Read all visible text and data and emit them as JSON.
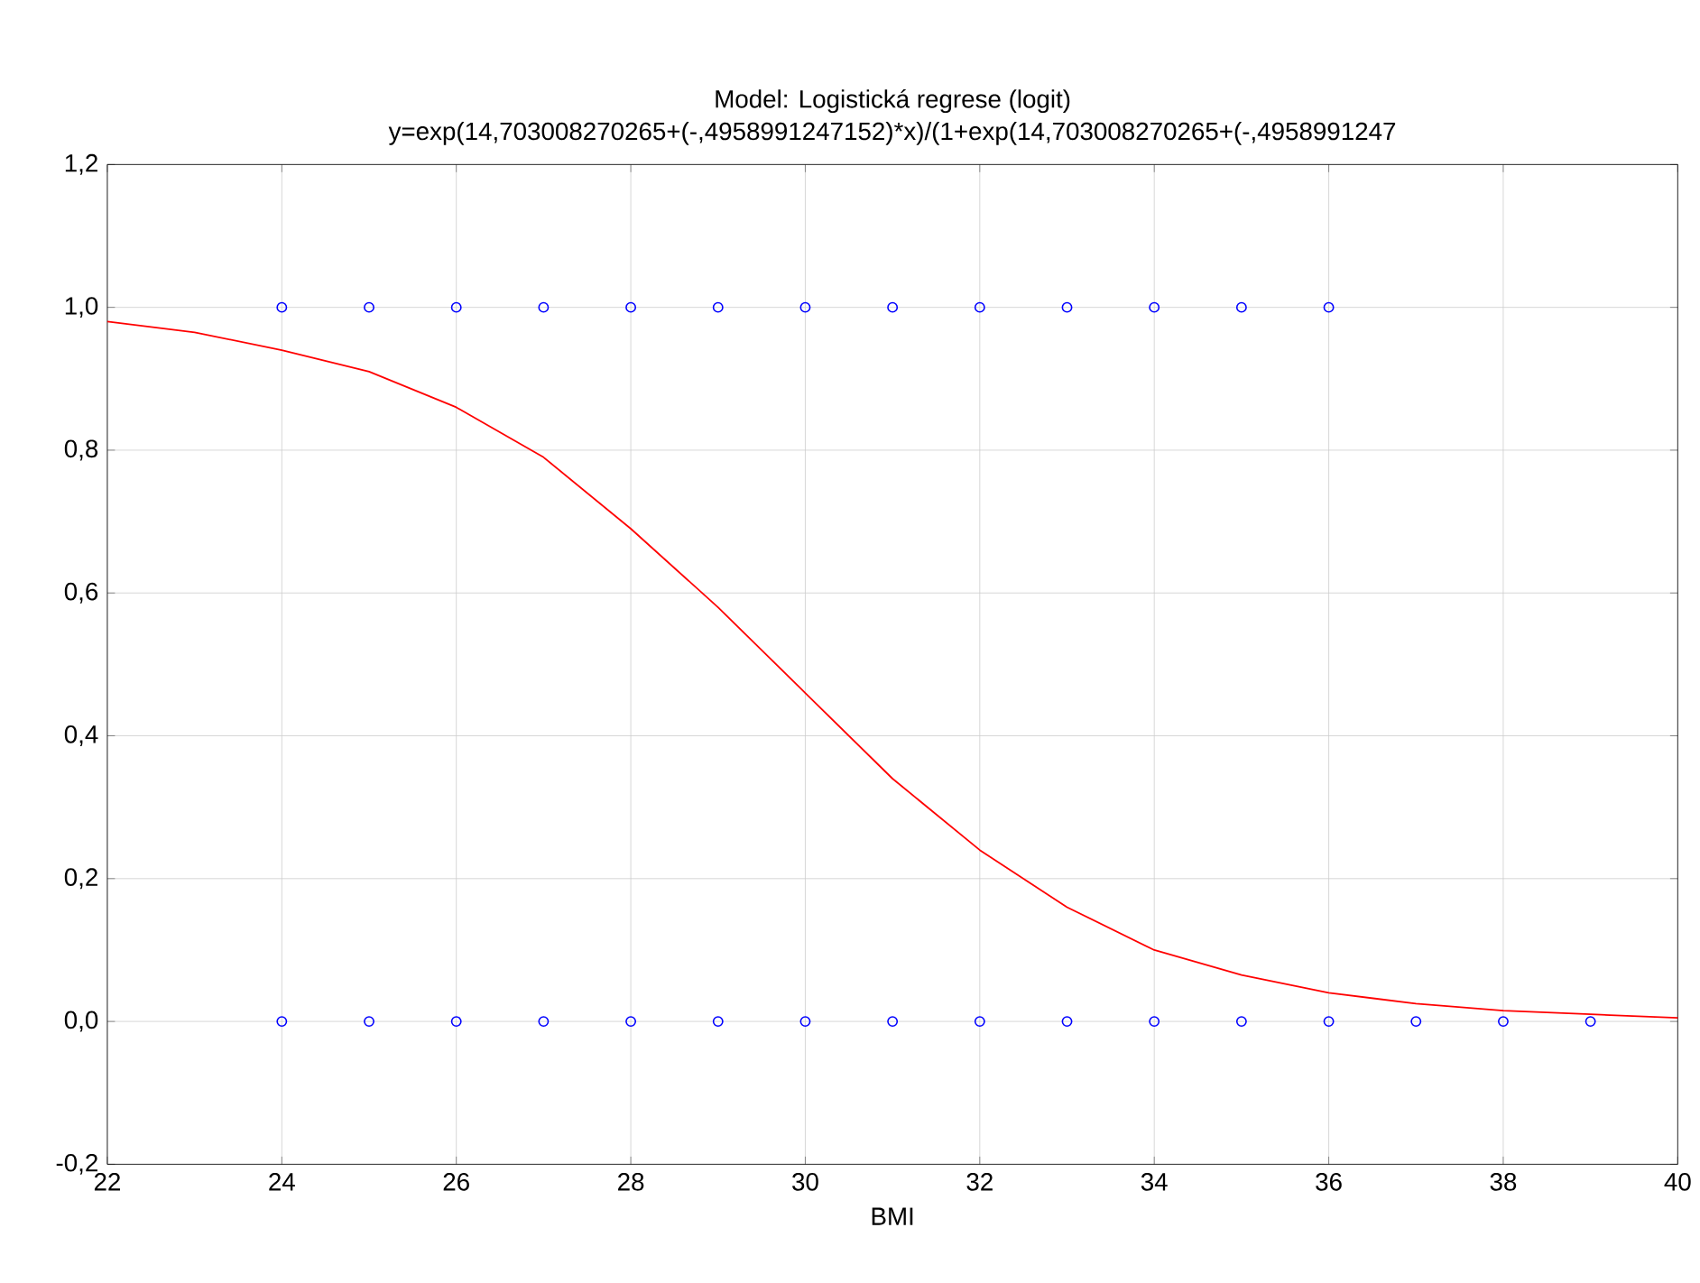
{
  "chart_data": {
    "type": "scatter",
    "title": "Model: Logistická regrese (logit)",
    "subtitle": "y=exp(14,703008270265+(-,4958991247152)*x)/(1+exp(14,703008270265+(-,4958991247",
    "xlabel": "BMI",
    "series": [
      {
        "color": "#0000ff",
        "marker": "circle",
        "x": [
          24,
          25,
          26,
          27,
          28,
          29,
          30,
          31,
          32,
          33,
          34,
          35,
          36
        ],
        "values": [
          1,
          1,
          1,
          1,
          1,
          1,
          1,
          1,
          1,
          1,
          1,
          1,
          1
        ]
      },
      {
        "color": "#0000ff",
        "marker": "circle",
        "x": [
          24,
          25,
          26,
          27,
          28,
          29,
          30,
          31,
          32,
          33,
          34,
          35,
          36,
          37,
          38,
          39
        ],
        "values": [
          0,
          0,
          0,
          0,
          0,
          0,
          0,
          0,
          0,
          0,
          0,
          0,
          0,
          0,
          0,
          0
        ]
      },
      {
        "type": "line",
        "color": "#ff0000",
        "marker": "none",
        "x": [
          22,
          23,
          24,
          25,
          26,
          27,
          28,
          29,
          30,
          31,
          32,
          33,
          34,
          35,
          36,
          37,
          38,
          39,
          40
        ],
        "values": [
          0.98,
          0.965,
          0.94,
          0.91,
          0.86,
          0.79,
          0.69,
          0.58,
          0.46,
          0.34,
          0.24,
          0.16,
          0.1,
          0.065,
          0.04,
          0.025,
          0.015,
          0.01,
          0.005
        ]
      }
    ],
    "xlim": [
      22,
      40
    ],
    "xticks": [
      22,
      24,
      26,
      28,
      30,
      32,
      34,
      36,
      38,
      40
    ],
    "ylim": [
      -0.2,
      1.2
    ],
    "yticks": [
      {
        "value": -0.2,
        "label": "-0,2"
      },
      {
        "value": 0,
        "label": "0,0"
      },
      {
        "value": 0.2,
        "label": "0,2"
      },
      {
        "value": 0.4,
        "label": "0,4"
      },
      {
        "value": 0.6,
        "label": "0,6"
      },
      {
        "value": 0.8,
        "label": "0,8"
      },
      {
        "value": 1.0,
        "label": "1,0"
      },
      {
        "value": 1.2,
        "label": "1,2"
      }
    ],
    "grid": true
  }
}
